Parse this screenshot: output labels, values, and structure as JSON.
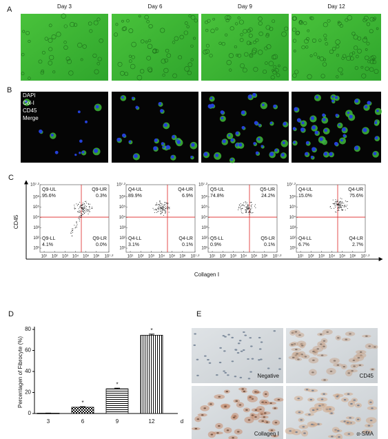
{
  "panel_labels": [
    "A",
    "B",
    "C",
    "D",
    "E"
  ],
  "panel_a": {
    "days": [
      "Day 3",
      "Day 6",
      "Day 9",
      "Day 12"
    ]
  },
  "panel_b": {
    "legend": [
      "DAPI",
      "Col-I",
      "CD45",
      "Merge"
    ]
  },
  "panel_c": {
    "y_label": "CD45",
    "x_label": "Collagen Ⅰ",
    "lim": [
      0.6,
      7.2
    ],
    "ticks": [
      {
        "value": 1,
        "label": "10¹"
      },
      {
        "value": 2,
        "label": "10²"
      },
      {
        "value": 3,
        "label": "10³"
      },
      {
        "value": 4,
        "label": "10⁴"
      },
      {
        "value": 5,
        "label": "10⁵"
      },
      {
        "value": 6,
        "label": "10⁶"
      },
      {
        "value": 7.2,
        "label": "10⁷·²"
      }
    ],
    "plots": [
      {
        "gate": "Q9",
        "quadrants": [
          "Q9-UL",
          "Q9-UR",
          "Q9-LL",
          "Q9-LR"
        ],
        "values": [
          95.6,
          0.3,
          4.1,
          0.0
        ],
        "value_labels": [
          "95.6%",
          "0.3%",
          "4.1%",
          "0.0%"
        ]
      },
      {
        "gate": "Q4",
        "quadrants": [
          "Q4-UL",
          "Q4-UR",
          "Q4-LL",
          "Q4-LR"
        ],
        "values": [
          89.9,
          6.9,
          3.1,
          0.1
        ],
        "value_labels": [
          "89.9%",
          "6.9%",
          "3.1%",
          "0.1%"
        ]
      },
      {
        "gate": "Q5",
        "quadrants": [
          "Q5-UL",
          "Q5-UR",
          "Q5-LL",
          "Q5-LR"
        ],
        "values": [
          74.8,
          24.2,
          0.9,
          0.1
        ],
        "value_labels": [
          "74.8%",
          "24.2%",
          "0.9%",
          "0.1%"
        ]
      },
      {
        "gate": "Q4",
        "quadrants": [
          "Q4-UL",
          "Q4-UR",
          "Q4-LL",
          "Q4-LR"
        ],
        "values": [
          15.0,
          75.6,
          6.7,
          2.7
        ],
        "value_labels": [
          "15.0%",
          "75.6%",
          "6.7%",
          "2.7%"
        ]
      }
    ]
  },
  "chart_data": {
    "type": "bar",
    "y_label": "Percentagen of Fibrocyte (%)",
    "x_unit": "d",
    "categories": [
      "3",
      "6",
      "9",
      "12"
    ],
    "values": [
      0.3,
      6,
      23.5,
      74.5
    ],
    "errors": [
      0.1,
      0.5,
      0.6,
      1.0
    ],
    "significance": [
      null,
      "*",
      "*",
      "*"
    ],
    "ylim": [
      0,
      80
    ],
    "yticks": [
      0,
      20,
      40,
      60,
      80
    ],
    "color": "#000000"
  },
  "panel_e": {
    "labels": [
      "Negative",
      "CD45",
      "Collagen Ⅰ",
      "α-SMA"
    ]
  }
}
